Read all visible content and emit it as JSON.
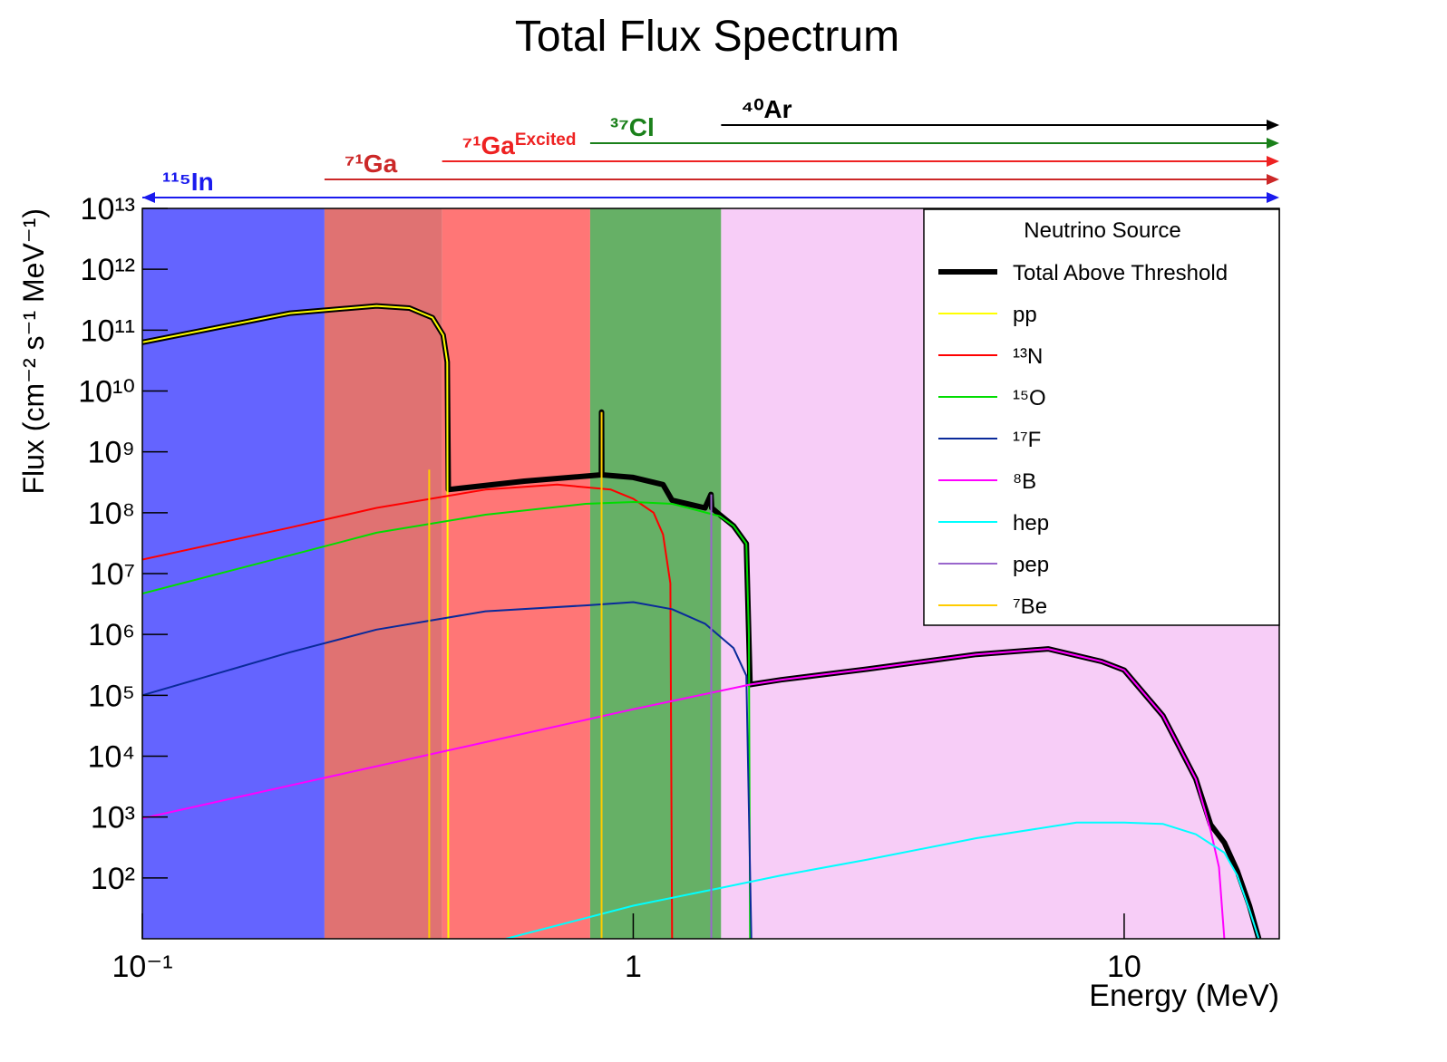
{
  "chart_data": {
    "type": "line",
    "title": "Total Flux Spectrum",
    "x_label": "Energy (MeV)",
    "y_label": "Flux (cm⁻² s⁻¹ MeV⁻¹)",
    "log_x": true,
    "log_y": true,
    "xlim": [
      0.1,
      20.7
    ],
    "ylim": [
      10,
      10000000000000.0
    ],
    "xticks": [
      {
        "value": 0.1,
        "label": "10⁻¹"
      },
      1,
      10
    ],
    "yticks": [
      {
        "value": 100,
        "label": "10²"
      },
      {
        "value": 1000,
        "label": "10³"
      },
      {
        "value": 10000,
        "label": "10⁴"
      },
      {
        "value": 100000,
        "label": "10⁵"
      },
      {
        "value": 1000000,
        "label": "10⁶"
      },
      {
        "value": 10000000,
        "label": "10⁷"
      },
      {
        "value": 100000000,
        "label": "10⁸"
      },
      {
        "value": 1000000000,
        "label": "10⁹"
      },
      {
        "value": 10000000000,
        "label": "10¹⁰"
      },
      {
        "value": 100000000000,
        "label": "10¹¹"
      },
      {
        "value": 1000000000000,
        "label": "10¹²"
      },
      {
        "value": 10000000000000,
        "label": "10¹³"
      }
    ],
    "legend_title": "Neutrino Source",
    "legend_position": "upper-right",
    "thresholds": [
      {
        "name": "¹¹⁵In",
        "start": 0.1,
        "color": "#1a1aee",
        "band_color": "#6464ff"
      },
      {
        "name": "⁷¹Ga",
        "start": 0.235,
        "color": "#cc2828",
        "band_color": "#e07272"
      },
      {
        "name": "⁷¹Ga",
        "superscript": "Excited",
        "start": 0.408,
        "color": "#ee2222",
        "band_color": "#ff7676"
      },
      {
        "name": "³⁷Cl",
        "start": 0.817,
        "color": "#1a801a",
        "band_color": "#66b066"
      },
      {
        "name": "⁴⁰Ar",
        "start": 1.51,
        "color": "#000000",
        "band_color": "#f7cdf7"
      }
    ],
    "series": [
      {
        "name": "Total Above Threshold",
        "color": "#000000",
        "width": 6,
        "x": [
          0.1,
          0.2,
          0.3,
          0.35,
          0.39,
          0.41,
          0.418,
          0.42,
          0.6,
          0.861,
          0.862,
          0.863,
          1.0,
          1.15,
          1.2,
          1.4,
          1.44,
          1.445,
          1.5,
          1.6,
          1.7,
          1.73,
          2,
          3,
          5,
          7,
          9,
          10,
          12,
          14,
          15,
          16,
          17,
          18,
          18.8
        ],
        "values": [
          63000000000.0,
          190000000000.0,
          250000000000.0,
          230000000000.0,
          160000000000.0,
          83000000000.0,
          30000000000.0,
          240000000.0,
          330000000.0,
          420000000.0,
          4500000000.0,
          420000000.0,
          380000000.0,
          290000000.0,
          160000000.0,
          120000000.0,
          200000000.0,
          120000000.0,
          93000000.0,
          61000000.0,
          31000000.0,
          150000.0,
          180000.0,
          270000.0,
          470000.0,
          580000.0,
          360000.0,
          260000.0,
          46000.0,
          4200.0,
          750,
          380,
          130,
          35,
          10
        ]
      },
      {
        "name": "pp",
        "color": "#ffff00",
        "width": 2,
        "x": [
          0.1,
          0.2,
          0.3,
          0.35,
          0.39,
          0.41,
          0.418,
          0.42
        ],
        "values": [
          63000000000.0,
          190000000000.0,
          250000000000.0,
          230000000000.0,
          160000000000.0,
          83000000000.0,
          30000000000.0,
          10
        ]
      },
      {
        "name": "¹³N",
        "color": "#ff0000",
        "width": 2,
        "x": [
          0.1,
          0.2,
          0.3,
          0.5,
          0.7,
          0.9,
          1.0,
          1.1,
          1.15,
          1.19,
          1.2
        ],
        "values": [
          17000000.0,
          57000000.0,
          120000000.0,
          240000000.0,
          290000000.0,
          240000000.0,
          170000000.0,
          100000000.0,
          44000000.0,
          6900000.0,
          10
        ]
      },
      {
        "name": "¹⁵O",
        "color": "#00dd00",
        "width": 2,
        "x": [
          0.1,
          0.2,
          0.3,
          0.5,
          0.8,
          1.0,
          1.2,
          1.5,
          1.6,
          1.7,
          1.72,
          1.73
        ],
        "values": [
          4700000.0,
          20000000.0,
          47000000.0,
          93000000.0,
          140000000.0,
          150000000.0,
          140000000.0,
          88000000.0,
          61000000.0,
          31000000.0,
          1000000.0,
          10
        ]
      },
      {
        "name": "¹⁷F",
        "color": "#0a2a9a",
        "width": 2,
        "x": [
          0.1,
          0.2,
          0.3,
          0.5,
          0.8,
          1.0,
          1.2,
          1.4,
          1.6,
          1.7,
          1.74
        ],
        "values": [
          100000.0,
          510000.0,
          1200000.0,
          2400000.0,
          3000000.0,
          3400000.0,
          2600000.0,
          1500000.0,
          600000.0,
          210000.0,
          10
        ]
      },
      {
        "name": "⁸B",
        "color": "#ff00ff",
        "width": 2,
        "x": [
          0.1,
          0.2,
          0.5,
          1,
          1.73,
          2,
          3,
          5,
          7,
          9,
          10,
          12,
          14,
          15,
          15.6,
          16
        ],
        "values": [
          950,
          3300,
          17000.0,
          59000.0,
          150000.0,
          180000.0,
          270000.0,
          470000.0,
          580000.0,
          360000.0,
          260000.0,
          46000.0,
          4200,
          600,
          150,
          10
        ]
      },
      {
        "name": "hep",
        "color": "#00ffff",
        "width": 2,
        "x": [
          0.55,
          1,
          1.5,
          2,
          3,
          5,
          8,
          10,
          12,
          14,
          16,
          17,
          18,
          18.8
        ],
        "values": [
          10,
          35,
          68,
          110,
          200,
          450,
          810,
          810,
          770,
          520,
          260,
          110,
          30,
          10
        ]
      },
      {
        "name": "pep",
        "color": "#9966cc",
        "width": 2,
        "style": "spikes",
        "x": [
          1.442
        ],
        "values": [
          200000000.0
        ]
      },
      {
        "name": "⁷Be",
        "color": "#ffcc00",
        "width": 2,
        "style": "spikes",
        "x": [
          0.384,
          0.862
        ],
        "values": [
          510000000.0,
          4500000000.0
        ]
      }
    ]
  }
}
